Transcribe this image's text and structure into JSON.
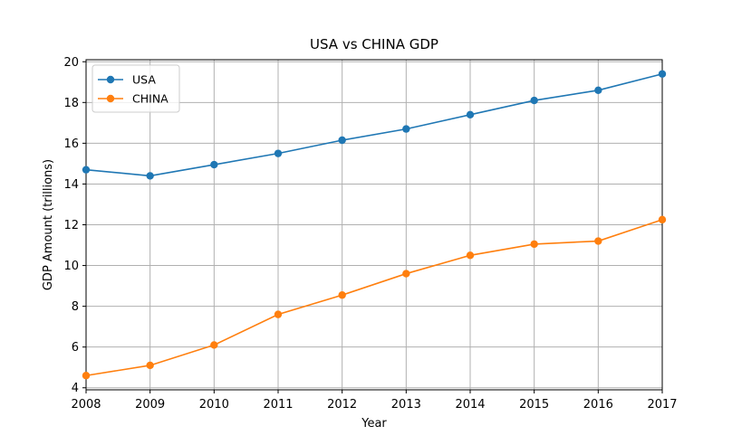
{
  "chart_data": {
    "type": "line",
    "title": "USA vs CHINA GDP",
    "xlabel": "Year",
    "ylabel": "GDP Amount (trillions)",
    "x": [
      2008,
      2009,
      2010,
      2011,
      2012,
      2013,
      2014,
      2015,
      2016,
      2017
    ],
    "xticks": [
      "2008",
      "2009",
      "2010",
      "2011",
      "2012",
      "2013",
      "2014",
      "2015",
      "2016",
      "2017"
    ],
    "yticks": [
      "4",
      "6",
      "8",
      "10",
      "12",
      "14",
      "16",
      "18",
      "20"
    ],
    "xlim": [
      2008,
      2017
    ],
    "ylim": [
      3.9,
      20.1
    ],
    "grid": true,
    "legend_position": "top-left",
    "series": [
      {
        "name": "USA",
        "color": "#1f77b4",
        "marker": "circle",
        "values": [
          14.7,
          14.4,
          14.95,
          15.5,
          16.15,
          16.7,
          17.4,
          18.1,
          18.6,
          19.4
        ]
      },
      {
        "name": "CHINA",
        "color": "#ff7f0e",
        "marker": "circle",
        "values": [
          4.6,
          5.1,
          6.1,
          7.6,
          8.55,
          9.6,
          10.5,
          11.05,
          11.2,
          12.25
        ]
      }
    ]
  }
}
